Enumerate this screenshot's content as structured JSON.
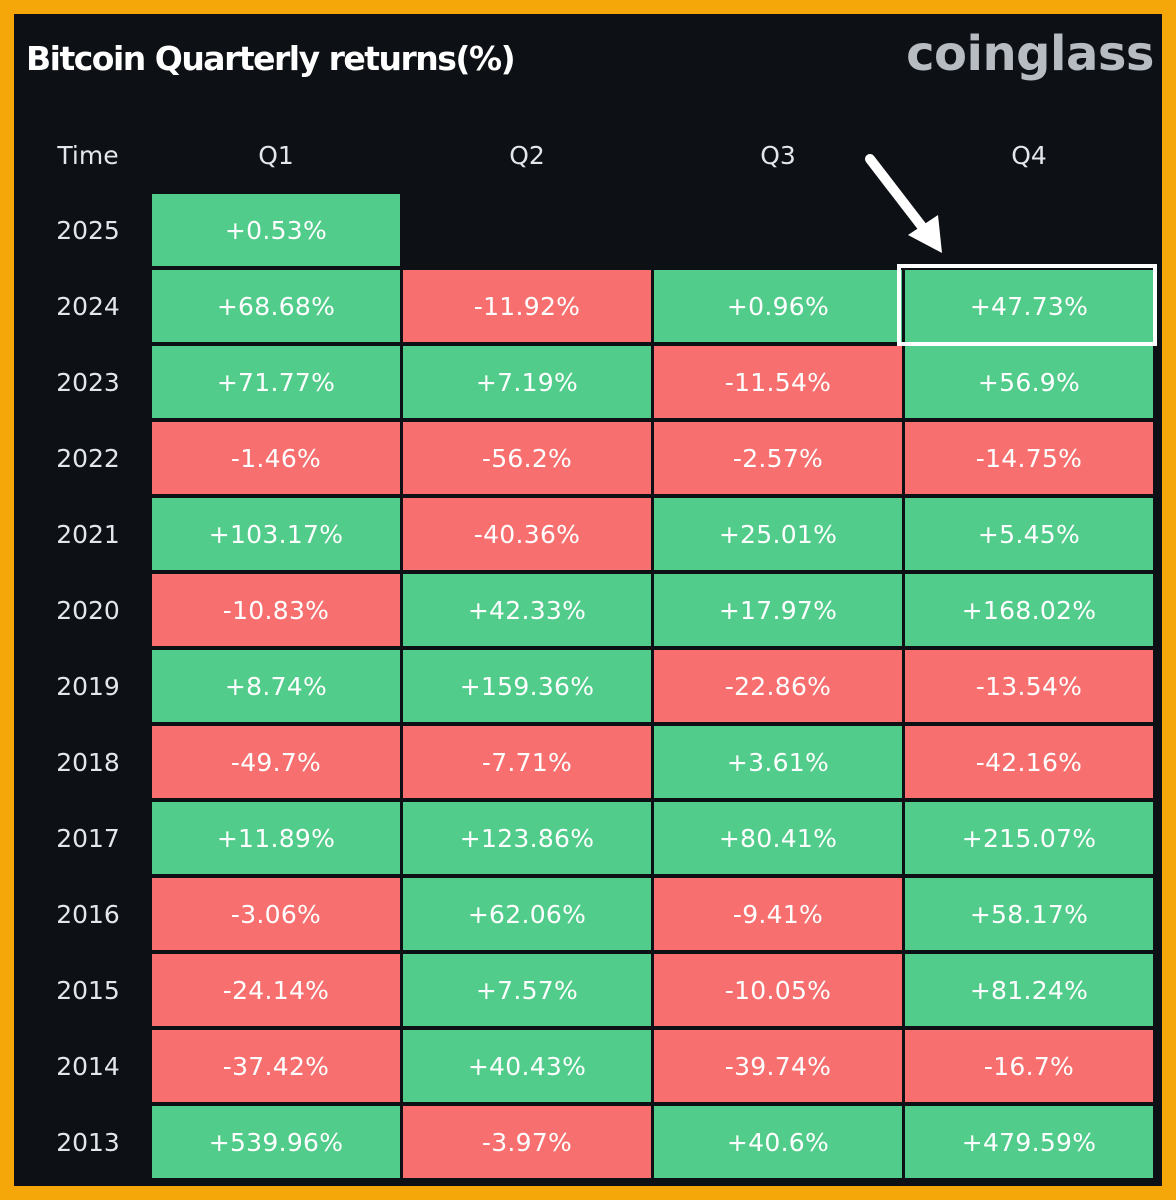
{
  "title": "Bitcoin Quarterly returns(%)",
  "brand": "coinglass",
  "colors": {
    "positive": "#52cc8a",
    "negative": "#f7706f",
    "background": "#0d1014",
    "frame": "#f5a70a"
  },
  "annotation": {
    "arrow_icon": "arrow-down-right-icon",
    "highlighted_year": "2024",
    "highlighted_quarter": "Q4"
  },
  "chart_data": {
    "type": "heatmap",
    "row_header": "Time",
    "columns": [
      "Q1",
      "Q2",
      "Q3",
      "Q4"
    ],
    "rows": [
      {
        "year": "2025",
        "values": [
          "+0.53%",
          null,
          null,
          null
        ]
      },
      {
        "year": "2024",
        "values": [
          "+68.68%",
          "-11.92%",
          "+0.96%",
          "+47.73%"
        ]
      },
      {
        "year": "2023",
        "values": [
          "+71.77%",
          "+7.19%",
          "-11.54%",
          "+56.9%"
        ]
      },
      {
        "year": "2022",
        "values": [
          "-1.46%",
          "-56.2%",
          "-2.57%",
          "-14.75%"
        ]
      },
      {
        "year": "2021",
        "values": [
          "+103.17%",
          "-40.36%",
          "+25.01%",
          "+5.45%"
        ]
      },
      {
        "year": "2020",
        "values": [
          "-10.83%",
          "+42.33%",
          "+17.97%",
          "+168.02%"
        ]
      },
      {
        "year": "2019",
        "values": [
          "+8.74%",
          "+159.36%",
          "-22.86%",
          "-13.54%"
        ]
      },
      {
        "year": "2018",
        "values": [
          "-49.7%",
          "-7.71%",
          "+3.61%",
          "-42.16%"
        ]
      },
      {
        "year": "2017",
        "values": [
          "+11.89%",
          "+123.86%",
          "+80.41%",
          "+215.07%"
        ]
      },
      {
        "year": "2016",
        "values": [
          "-3.06%",
          "+62.06%",
          "-9.41%",
          "+58.17%"
        ]
      },
      {
        "year": "2015",
        "values": [
          "-24.14%",
          "+7.57%",
          "-10.05%",
          "+81.24%"
        ]
      },
      {
        "year": "2014",
        "values": [
          "-37.42%",
          "+40.43%",
          "-39.74%",
          "-16.7%"
        ]
      },
      {
        "year": "2013",
        "values": [
          "+539.96%",
          "-3.97%",
          "+40.6%",
          "+479.59%"
        ]
      }
    ]
  }
}
